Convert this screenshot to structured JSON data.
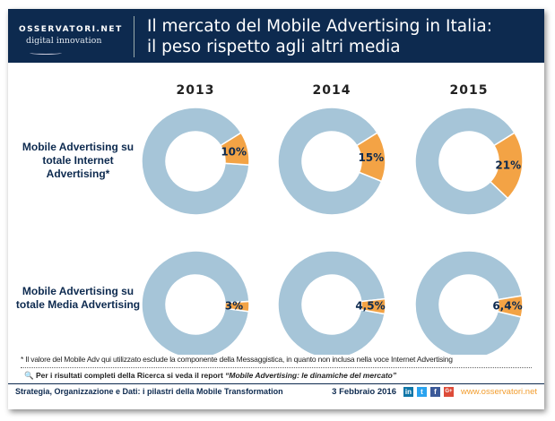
{
  "header": {
    "logo_top": "OSSERVATORI.NET",
    "logo_bottom": "digital innovation",
    "title_line1": "Il mercato del Mobile Advertising in Italia:",
    "title_line2": "il peso rispetto agli altri media"
  },
  "chart_data": {
    "type": "pie",
    "variant": "donut",
    "colors": {
      "share": "#f3a345",
      "rest": "#a6c5d8"
    },
    "columns": [
      "2013",
      "2014",
      "2015"
    ],
    "rows": [
      {
        "label": "Mobile Advertising su totale Internet Advertising*",
        "values": [
          10,
          15,
          21
        ],
        "value_labels": [
          "10%",
          "15%",
          "21%"
        ]
      },
      {
        "label": "Mobile Advertising su totale Media Advertising",
        "values": [
          3,
          4.5,
          6.4
        ],
        "value_labels": [
          "3%",
          "4,5%",
          "6,4%"
        ]
      }
    ]
  },
  "row_labels": [
    "Mobile Advertising su totale Internet Advertising*",
    "Mobile Advertising su totale Media Advertising"
  ],
  "footnote": "* Il valore del Mobile Adv qui utilizzato esclude la componente della Messaggistica, in quanto non inclusa nella voce Internet Advertising",
  "report_prefix": "Per i risultati completi della Ricerca si veda il report ",
  "report_title": "“Mobile Advertising: le dinamiche del mercato”",
  "footer": {
    "event": "Strategia, Organizzazione e Dati: i pilastri della Mobile Transformation",
    "date": "3 Febbraio 2016",
    "social": [
      "in",
      "t",
      "f",
      "G+"
    ],
    "url": "www.osservatori.net"
  }
}
